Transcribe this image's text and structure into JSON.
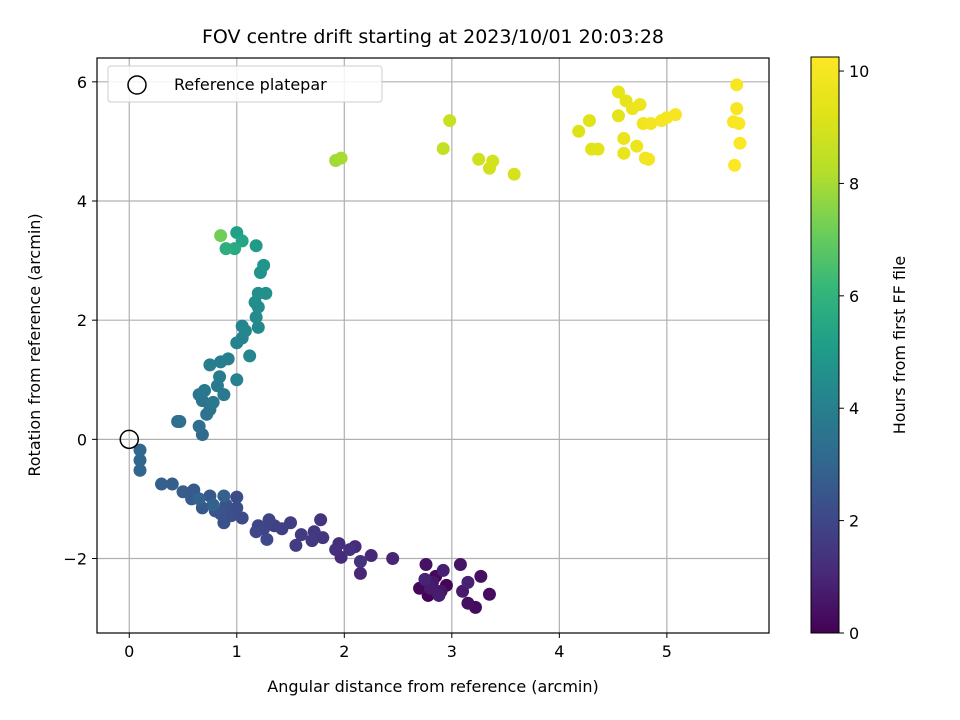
{
  "chart_data": {
    "type": "scatter",
    "title": "FOV centre drift starting at 2023/10/01 20:03:28",
    "xlabel": "Angular distance from reference (arcmin)",
    "ylabel": "Rotation from reference (arcmin)",
    "colorbar_label": "Hours from first FF file",
    "xlim": [
      -0.3,
      5.95
    ],
    "ylim": [
      -3.25,
      6.4
    ],
    "xticks": [
      0,
      1,
      2,
      3,
      4,
      5
    ],
    "yticks": [
      -2,
      0,
      2,
      4,
      6
    ],
    "colorbar_ticks": [
      0,
      2,
      4,
      6,
      8,
      10
    ],
    "colorbar_range": [
      0,
      10.25
    ],
    "grid": true,
    "colormap": "viridis",
    "legend": {
      "position": "top-left",
      "label": "Reference platepar"
    },
    "reference_point": {
      "x": 0,
      "y": 0
    },
    "points": [
      {
        "x": 2.78,
        "y": -2.62,
        "h": 0.05
      },
      {
        "x": 2.95,
        "y": -2.45,
        "h": 0.1
      },
      {
        "x": 2.7,
        "y": -2.5,
        "h": 0.15
      },
      {
        "x": 2.85,
        "y": -2.3,
        "h": 0.2
      },
      {
        "x": 3.22,
        "y": -2.82,
        "h": 0.25
      },
      {
        "x": 3.35,
        "y": -2.6,
        "h": 0.3
      },
      {
        "x": 3.15,
        "y": -2.75,
        "h": 0.35
      },
      {
        "x": 3.27,
        "y": -2.3,
        "h": 0.4
      },
      {
        "x": 2.76,
        "y": -2.1,
        "h": 0.45
      },
      {
        "x": 3.08,
        "y": -2.1,
        "h": 0.5
      },
      {
        "x": 2.9,
        "y": -2.55,
        "h": 0.55
      },
      {
        "x": 2.82,
        "y": -2.4,
        "h": 0.6
      },
      {
        "x": 3.1,
        "y": -2.55,
        "h": 0.65
      },
      {
        "x": 2.8,
        "y": -2.5,
        "h": 0.7
      },
      {
        "x": 2.88,
        "y": -2.62,
        "h": 0.75
      },
      {
        "x": 2.92,
        "y": -2.2,
        "h": 0.8
      },
      {
        "x": 3.15,
        "y": -2.4,
        "h": 0.85
      },
      {
        "x": 2.75,
        "y": -2.35,
        "h": 0.9
      },
      {
        "x": 2.45,
        "y": -2.0,
        "h": 0.95
      },
      {
        "x": 2.15,
        "y": -2.25,
        "h": 1.0
      },
      {
        "x": 2.25,
        "y": -1.95,
        "h": 1.05
      },
      {
        "x": 2.1,
        "y": -1.8,
        "h": 1.1
      },
      {
        "x": 1.97,
        "y": -1.98,
        "h": 1.15
      },
      {
        "x": 1.95,
        "y": -1.75,
        "h": 1.2
      },
      {
        "x": 1.92,
        "y": -1.85,
        "h": 1.25
      },
      {
        "x": 2.05,
        "y": -1.85,
        "h": 1.3
      },
      {
        "x": 2.15,
        "y": -2.05,
        "h": 1.35
      },
      {
        "x": 1.78,
        "y": -1.35,
        "h": 1.4
      },
      {
        "x": 1.8,
        "y": -1.65,
        "h": 1.45
      },
      {
        "x": 1.72,
        "y": -1.55,
        "h": 1.5
      },
      {
        "x": 1.7,
        "y": -1.7,
        "h": 1.55
      },
      {
        "x": 1.6,
        "y": -1.6,
        "h": 1.6
      },
      {
        "x": 1.55,
        "y": -1.78,
        "h": 1.65
      },
      {
        "x": 1.5,
        "y": -1.4,
        "h": 1.7
      },
      {
        "x": 1.42,
        "y": -1.5,
        "h": 1.75
      },
      {
        "x": 1.35,
        "y": -1.45,
        "h": 1.8
      },
      {
        "x": 1.3,
        "y": -1.35,
        "h": 1.85
      },
      {
        "x": 1.25,
        "y": -1.5,
        "h": 1.9
      },
      {
        "x": 1.2,
        "y": -1.45,
        "h": 1.95
      },
      {
        "x": 1.18,
        "y": -1.55,
        "h": 2.0
      },
      {
        "x": 1.28,
        "y": -1.68,
        "h": 2.05
      },
      {
        "x": 1.05,
        "y": -1.32,
        "h": 2.1
      },
      {
        "x": 1.0,
        "y": -0.97,
        "h": 2.15
      },
      {
        "x": 1.0,
        "y": -1.15,
        "h": 2.2
      },
      {
        "x": 0.95,
        "y": -1.28,
        "h": 2.25
      },
      {
        "x": 0.88,
        "y": -1.4,
        "h": 2.3
      },
      {
        "x": 0.9,
        "y": -1.1,
        "h": 2.35
      },
      {
        "x": 0.85,
        "y": -1.25,
        "h": 2.4
      },
      {
        "x": 0.8,
        "y": -1.2,
        "h": 2.45
      },
      {
        "x": 0.75,
        "y": -0.95,
        "h": 2.5
      },
      {
        "x": 0.68,
        "y": -1.15,
        "h": 2.55
      },
      {
        "x": 0.6,
        "y": -0.85,
        "h": 2.6
      },
      {
        "x": 0.58,
        "y": -1.0,
        "h": 2.65
      },
      {
        "x": 0.5,
        "y": -0.88,
        "h": 2.7
      },
      {
        "x": 0.4,
        "y": -0.75,
        "h": 2.75
      },
      {
        "x": 0.3,
        "y": -0.75,
        "h": 2.8
      },
      {
        "x": 0.88,
        "y": -0.95,
        "h": 2.85
      },
      {
        "x": 0.78,
        "y": -1.1,
        "h": 2.9
      },
      {
        "x": 0.65,
        "y": -1.0,
        "h": 2.95
      },
      {
        "x": 0.1,
        "y": -0.52,
        "h": 3.0
      },
      {
        "x": 0.1,
        "y": -0.35,
        "h": 3.05
      },
      {
        "x": 0.1,
        "y": -0.18,
        "h": 3.1
      },
      {
        "x": 0.68,
        "y": 0.08,
        "h": 3.2
      },
      {
        "x": 0.65,
        "y": 0.22,
        "h": 3.3
      },
      {
        "x": 0.45,
        "y": 0.3,
        "h": 3.35
      },
      {
        "x": 0.47,
        "y": 0.3,
        "h": 3.4
      },
      {
        "x": 0.72,
        "y": 0.42,
        "h": 3.45
      },
      {
        "x": 0.75,
        "y": 0.5,
        "h": 3.5
      },
      {
        "x": 0.68,
        "y": 0.65,
        "h": 3.55
      },
      {
        "x": 0.65,
        "y": 0.75,
        "h": 3.6
      },
      {
        "x": 0.7,
        "y": 0.82,
        "h": 3.65
      },
      {
        "x": 0.78,
        "y": 0.62,
        "h": 3.7
      },
      {
        "x": 0.88,
        "y": 0.75,
        "h": 3.75
      },
      {
        "x": 0.82,
        "y": 0.9,
        "h": 3.8
      },
      {
        "x": 0.84,
        "y": 1.05,
        "h": 3.85
      },
      {
        "x": 0.75,
        "y": 1.25,
        "h": 3.9
      },
      {
        "x": 0.85,
        "y": 1.3,
        "h": 3.95
      },
      {
        "x": 0.92,
        "y": 1.35,
        "h": 4.0
      },
      {
        "x": 1.0,
        "y": 1.0,
        "h": 4.05
      },
      {
        "x": 1.0,
        "y": 1.62,
        "h": 4.1
      },
      {
        "x": 1.05,
        "y": 1.7,
        "h": 4.15
      },
      {
        "x": 1.05,
        "y": 1.9,
        "h": 4.2
      },
      {
        "x": 1.12,
        "y": 1.4,
        "h": 4.25
      },
      {
        "x": 1.08,
        "y": 1.82,
        "h": 4.3
      },
      {
        "x": 1.2,
        "y": 1.88,
        "h": 4.35
      },
      {
        "x": 1.18,
        "y": 2.05,
        "h": 4.4
      },
      {
        "x": 1.2,
        "y": 2.22,
        "h": 4.45
      },
      {
        "x": 1.17,
        "y": 2.3,
        "h": 4.5
      },
      {
        "x": 1.2,
        "y": 2.45,
        "h": 4.55
      },
      {
        "x": 1.27,
        "y": 2.45,
        "h": 4.6
      },
      {
        "x": 1.22,
        "y": 2.8,
        "h": 4.7
      },
      {
        "x": 1.25,
        "y": 2.92,
        "h": 4.8
      },
      {
        "x": 1.18,
        "y": 3.25,
        "h": 5.0
      },
      {
        "x": 1.0,
        "y": 3.47,
        "h": 5.2
      },
      {
        "x": 1.05,
        "y": 3.33,
        "h": 5.4
      },
      {
        "x": 0.98,
        "y": 3.2,
        "h": 5.6
      },
      {
        "x": 0.9,
        "y": 3.2,
        "h": 5.8
      },
      {
        "x": 0.85,
        "y": 3.42,
        "h": 7.2
      },
      {
        "x": 1.92,
        "y": 4.68,
        "h": 7.9
      },
      {
        "x": 1.97,
        "y": 4.72,
        "h": 8.0
      },
      {
        "x": 2.92,
        "y": 4.88,
        "h": 8.6
      },
      {
        "x": 2.98,
        "y": 5.35,
        "h": 8.7
      },
      {
        "x": 3.25,
        "y": 4.7,
        "h": 8.8
      },
      {
        "x": 3.35,
        "y": 4.55,
        "h": 8.9
      },
      {
        "x": 3.38,
        "y": 4.67,
        "h": 8.95
      },
      {
        "x": 3.58,
        "y": 4.45,
        "h": 9.0
      },
      {
        "x": 4.18,
        "y": 5.17,
        "h": 9.2
      },
      {
        "x": 4.28,
        "y": 5.35,
        "h": 9.25
      },
      {
        "x": 4.3,
        "y": 4.87,
        "h": 9.3
      },
      {
        "x": 4.36,
        "y": 4.87,
        "h": 9.35
      },
      {
        "x": 4.55,
        "y": 5.43,
        "h": 9.4
      },
      {
        "x": 4.55,
        "y": 5.83,
        "h": 9.45
      },
      {
        "x": 4.62,
        "y": 5.68,
        "h": 9.5
      },
      {
        "x": 4.6,
        "y": 5.05,
        "h": 9.55
      },
      {
        "x": 4.6,
        "y": 4.8,
        "h": 9.6
      },
      {
        "x": 4.68,
        "y": 5.55,
        "h": 9.65
      },
      {
        "x": 4.72,
        "y": 4.92,
        "h": 9.7
      },
      {
        "x": 4.75,
        "y": 5.62,
        "h": 9.75
      },
      {
        "x": 4.78,
        "y": 5.3,
        "h": 9.8
      },
      {
        "x": 4.8,
        "y": 4.72,
        "h": 9.85
      },
      {
        "x": 4.83,
        "y": 4.7,
        "h": 9.9
      },
      {
        "x": 4.85,
        "y": 5.3,
        "h": 9.92
      },
      {
        "x": 4.95,
        "y": 5.35,
        "h": 9.95
      },
      {
        "x": 5.0,
        "y": 5.4,
        "h": 9.98
      },
      {
        "x": 5.08,
        "y": 5.45,
        "h": 10.0
      },
      {
        "x": 5.62,
        "y": 5.33,
        "h": 10.05
      },
      {
        "x": 5.65,
        "y": 5.95,
        "h": 10.1
      },
      {
        "x": 5.65,
        "y": 5.55,
        "h": 10.12
      },
      {
        "x": 5.67,
        "y": 5.3,
        "h": 10.15
      },
      {
        "x": 5.68,
        "y": 4.97,
        "h": 10.18
      },
      {
        "x": 5.63,
        "y": 4.6,
        "h": 10.22
      }
    ]
  }
}
